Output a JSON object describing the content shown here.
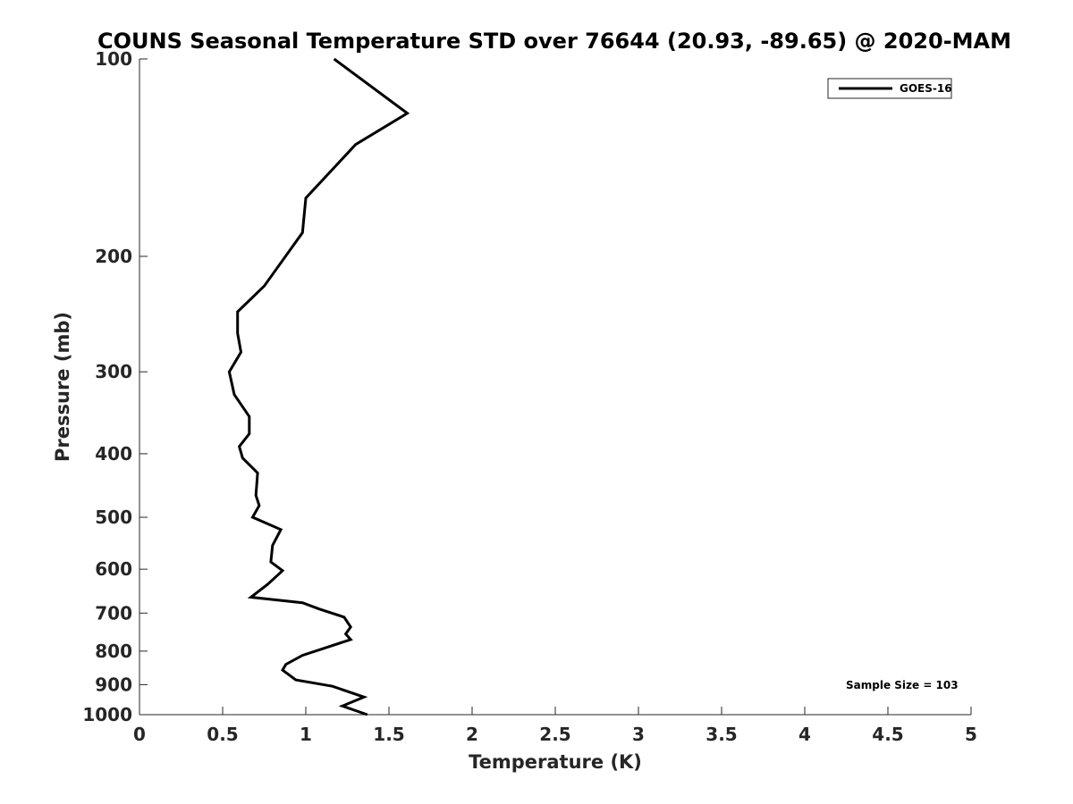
{
  "chart_data": {
    "type": "line",
    "title": "COUNS Seasonal Temperature STD over 76644 (20.93, -89.65) @ 2020-MAM",
    "xlabel": "Temperature (K)",
    "ylabel": "Pressure (mb)",
    "xlim": [
      0,
      5
    ],
    "ylim": [
      100,
      1000
    ],
    "y_scale": "log",
    "y_reversed": true,
    "x_ticks": [
      "0",
      "0.5",
      "1",
      "1.5",
      "2",
      "2.5",
      "3",
      "3.5",
      "4",
      "4.5",
      "5"
    ],
    "y_ticks": [
      "100",
      "200",
      "300",
      "400",
      "500",
      "600",
      "700",
      "800",
      "900",
      "1000"
    ],
    "grid": false,
    "legend_position": "top-right",
    "annotation": "Sample Size = 103",
    "series": [
      {
        "name": "GOES-16",
        "color": "#000000",
        "points": [
          {
            "x": 1.17,
            "y": 100
          },
          {
            "x": 1.61,
            "y": 121
          },
          {
            "x": 1.3,
            "y": 135
          },
          {
            "x": 1.0,
            "y": 163
          },
          {
            "x": 0.98,
            "y": 184
          },
          {
            "x": 0.75,
            "y": 222
          },
          {
            "x": 0.59,
            "y": 243
          },
          {
            "x": 0.59,
            "y": 262
          },
          {
            "x": 0.61,
            "y": 280
          },
          {
            "x": 0.54,
            "y": 300
          },
          {
            "x": 0.57,
            "y": 325
          },
          {
            "x": 0.66,
            "y": 351
          },
          {
            "x": 0.66,
            "y": 373
          },
          {
            "x": 0.6,
            "y": 390
          },
          {
            "x": 0.62,
            "y": 406
          },
          {
            "x": 0.71,
            "y": 428
          },
          {
            "x": 0.7,
            "y": 463
          },
          {
            "x": 0.72,
            "y": 480
          },
          {
            "x": 0.68,
            "y": 500
          },
          {
            "x": 0.85,
            "y": 522
          },
          {
            "x": 0.8,
            "y": 552
          },
          {
            "x": 0.79,
            "y": 585
          },
          {
            "x": 0.86,
            "y": 603
          },
          {
            "x": 0.77,
            "y": 633
          },
          {
            "x": 0.67,
            "y": 662
          },
          {
            "x": 0.98,
            "y": 675
          },
          {
            "x": 1.08,
            "y": 690
          },
          {
            "x": 1.23,
            "y": 710
          },
          {
            "x": 1.27,
            "y": 735
          },
          {
            "x": 1.24,
            "y": 753
          },
          {
            "x": 1.27,
            "y": 768
          },
          {
            "x": 0.98,
            "y": 812
          },
          {
            "x": 0.88,
            "y": 838
          },
          {
            "x": 0.86,
            "y": 855
          },
          {
            "x": 0.94,
            "y": 885
          },
          {
            "x": 1.16,
            "y": 905
          },
          {
            "x": 1.35,
            "y": 940
          },
          {
            "x": 1.22,
            "y": 970
          },
          {
            "x": 1.37,
            "y": 1000
          }
        ]
      }
    ]
  }
}
